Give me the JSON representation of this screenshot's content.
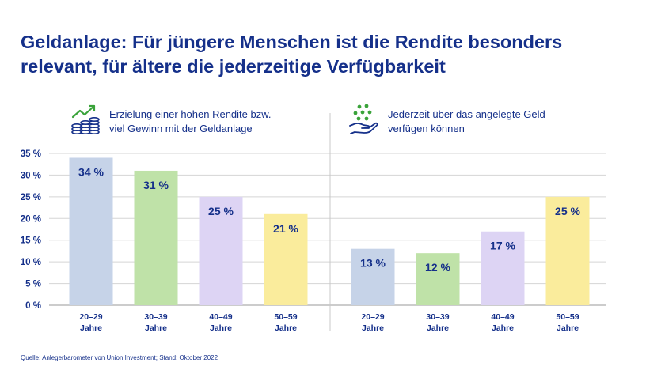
{
  "title_line1": "Geldanlage: Für jüngere Menschen ist die Rendite besonders",
  "title_line2": "relevant, für ältere die jederzeitige Verfügbarkeit",
  "source": "Quelle: Anlegerbarometer von Union Investment; Stand: Oktober 2022",
  "icons": {
    "left": "growth-coins-icon",
    "right": "hand-coins-icon"
  },
  "colors": {
    "blue": "#c6d3e8",
    "green": "#bfe2a8",
    "purple": "#ddd4f4",
    "yellow": "#faec9c",
    "text": "#15308a",
    "grid": "#d5d5d5"
  },
  "chart_data": {
    "type": "bar",
    "ylim": [
      0,
      35
    ],
    "yticks": [
      "0 %",
      "5 %",
      "10 %",
      "15 %",
      "20 %",
      "25 %",
      "30 %",
      "35 %"
    ],
    "categories": [
      "20–29 Jahre",
      "30–39 Jahre",
      "40–49 Jahre",
      "50–59 Jahre"
    ],
    "grid": true,
    "panels": [
      {
        "title_line1": "Erzielung einer hohen Rendite bzw.",
        "title_line2": "viel Gewinn mit der Geldanlage",
        "values": [
          34,
          31,
          25,
          21
        ],
        "labels": [
          "34 %",
          "31 %",
          "25 %",
          "21 %"
        ]
      },
      {
        "title_line1": "Jederzeit über das angelegte Geld",
        "title_line2": "verfügen können",
        "values": [
          13,
          12,
          17,
          25
        ],
        "labels": [
          "13 %",
          "12 %",
          "17 %",
          "25 %"
        ]
      }
    ]
  }
}
